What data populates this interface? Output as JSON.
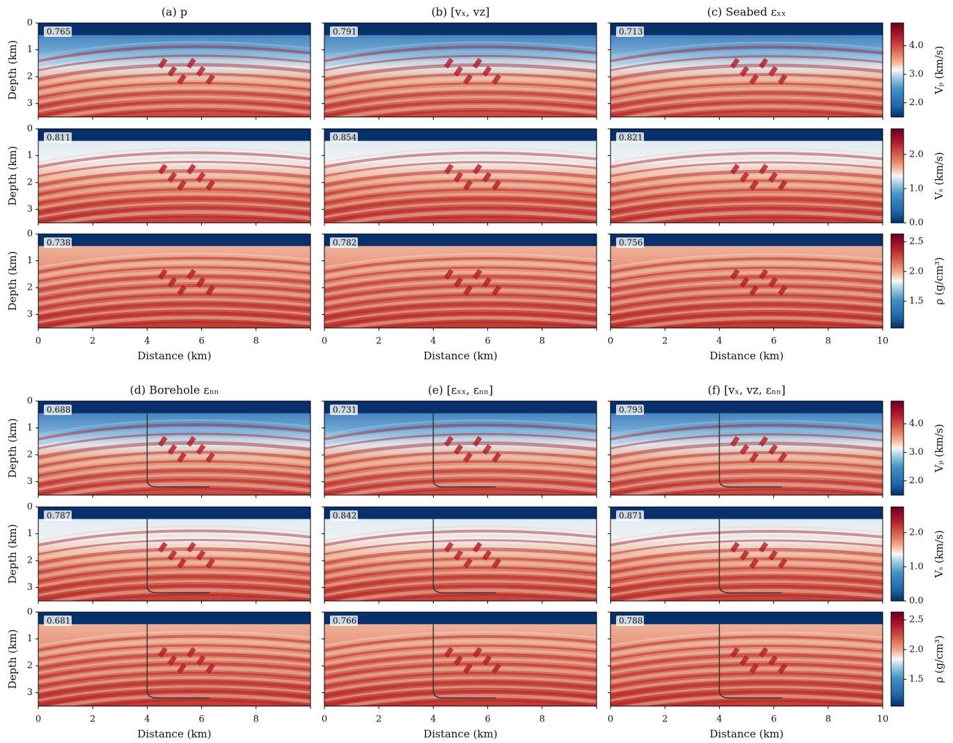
{
  "xlabel": "Distance (km)",
  "ylabel": "Depth (km)",
  "xlim": [
    0,
    10
  ],
  "ylim": [
    0,
    3.5
  ],
  "xticks": [
    0,
    2,
    4,
    6,
    8,
    10
  ],
  "yticks": [
    0,
    1,
    2,
    3
  ],
  "rows": [
    {
      "colorbar_label": "Vₚ (km/s)",
      "clim": [
        1.5,
        4.8
      ],
      "cticks": [
        {
          "value": 2,
          "label": "2.0"
        },
        {
          "value": 3,
          "label": "3.0"
        },
        {
          "value": 4,
          "label": "4.0"
        }
      ]
    },
    {
      "colorbar_label": "Vₛ (km/s)",
      "clim": [
        0,
        2.75
      ],
      "cticks": [
        {
          "value": 0,
          "label": "0.0"
        },
        {
          "value": 1,
          "label": "1.0"
        },
        {
          "value": 2,
          "label": "2.0"
        }
      ]
    },
    {
      "colorbar_label": "ρ (g/cm³)",
      "clim": [
        1.05,
        2.63
      ],
      "cticks": [
        1.5,
        {
          "value": 2,
          "label": "2.0"
        },
        2.5
      ]
    }
  ],
  "groups": [
    {
      "panels": [
        {
          "title": "(a) p",
          "scores": [
            0.765,
            0.811,
            0.738
          ]
        },
        {
          "title": "(b) [vₓ, vz]",
          "scores": [
            0.791,
            0.854,
            0.782
          ]
        },
        {
          "title": "(c) Seabed εₓₓ",
          "scores": [
            0.713,
            0.821,
            0.756
          ]
        }
      ]
    },
    {
      "panels": [
        {
          "title": "(d) Borehole εₙₙ",
          "scores": [
            0.688,
            0.787,
            0.681
          ]
        },
        {
          "title": "(e) [εₓₓ, εₙₙ]",
          "scores": [
            0.731,
            0.842,
            0.766
          ]
        },
        {
          "title": "(f) [vₓ, vz, εₙₙ]",
          "scores": [
            0.793,
            0.871,
            0.788
          ]
        }
      ]
    }
  ]
}
